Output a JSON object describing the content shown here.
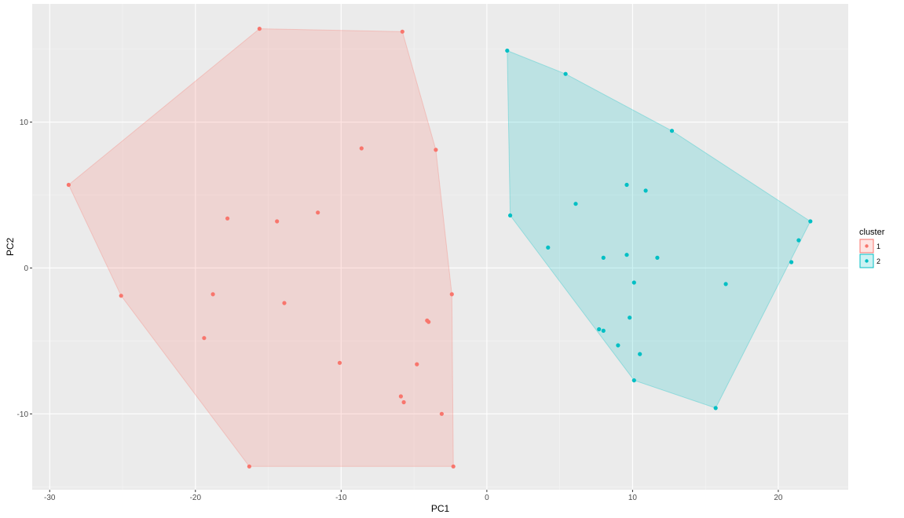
{
  "chart_data": {
    "type": "scatter",
    "title": "",
    "xlabel": "PC1",
    "ylabel": "PC2",
    "xlim": [
      -31.2,
      24.8
    ],
    "ylim": [
      -15.2,
      18.1
    ],
    "x_ticks": [
      -30,
      -20,
      -10,
      0,
      10,
      20
    ],
    "y_ticks": [
      -10,
      0,
      10
    ],
    "x_tick_labels": [
      "-30",
      "-20",
      "-10",
      "0",
      "10",
      "20"
    ],
    "y_tick_labels": [
      "-10",
      "0",
      "10"
    ],
    "grid": true,
    "legend": {
      "title": "cluster",
      "position": "right",
      "entries": [
        "1",
        "2"
      ]
    },
    "series": [
      {
        "name": "1",
        "color": "#F8766D",
        "fill": "#F8766D",
        "points": [
          [
            -15.6,
            16.4
          ],
          [
            -5.8,
            16.2
          ],
          [
            -28.7,
            5.7
          ],
          [
            -8.6,
            8.2
          ],
          [
            -3.5,
            8.1
          ],
          [
            -17.8,
            3.4
          ],
          [
            -11.6,
            3.8
          ],
          [
            -14.4,
            3.2
          ],
          [
            -25.1,
            -1.9
          ],
          [
            -18.8,
            -1.8
          ],
          [
            -2.4,
            -1.8
          ],
          [
            -13.9,
            -2.4
          ],
          [
            -4.1,
            -3.6
          ],
          [
            -4.0,
            -3.7
          ],
          [
            -19.4,
            -4.8
          ],
          [
            -10.1,
            -6.5
          ],
          [
            -4.8,
            -6.6
          ],
          [
            -5.9,
            -8.8
          ],
          [
            -5.7,
            -9.2
          ],
          [
            -3.1,
            -10.0
          ],
          [
            -16.3,
            -13.6
          ],
          [
            -2.3,
            -13.6
          ]
        ],
        "hull": [
          [
            -15.6,
            16.4
          ],
          [
            -5.8,
            16.2
          ],
          [
            -3.5,
            8.1
          ],
          [
            -2.4,
            -1.8
          ],
          [
            -2.3,
            -13.6
          ],
          [
            -16.3,
            -13.6
          ],
          [
            -25.1,
            -1.9
          ],
          [
            -28.7,
            5.7
          ]
        ]
      },
      {
        "name": "2",
        "color": "#00BFC4",
        "fill": "#00BFC4",
        "points": [
          [
            1.4,
            14.9
          ],
          [
            5.4,
            13.3
          ],
          [
            12.7,
            9.4
          ],
          [
            9.6,
            5.7
          ],
          [
            10.9,
            5.3
          ],
          [
            6.1,
            4.4
          ],
          [
            1.6,
            3.6
          ],
          [
            22.2,
            3.2
          ],
          [
            21.4,
            1.9
          ],
          [
            4.2,
            1.4
          ],
          [
            8.0,
            0.7
          ],
          [
            9.6,
            0.9
          ],
          [
            11.7,
            0.7
          ],
          [
            20.9,
            0.4
          ],
          [
            10.1,
            -1.0
          ],
          [
            16.4,
            -1.1
          ],
          [
            9.8,
            -3.4
          ],
          [
            7.7,
            -4.2
          ],
          [
            8.0,
            -4.3
          ],
          [
            9.0,
            -5.3
          ],
          [
            10.5,
            -5.9
          ],
          [
            10.1,
            -7.7
          ],
          [
            15.7,
            -9.6
          ]
        ],
        "hull": [
          [
            1.4,
            14.9
          ],
          [
            5.4,
            13.3
          ],
          [
            12.7,
            9.4
          ],
          [
            22.2,
            3.2
          ],
          [
            15.7,
            -9.6
          ],
          [
            10.1,
            -7.7
          ],
          [
            1.6,
            3.6
          ]
        ]
      }
    ]
  }
}
